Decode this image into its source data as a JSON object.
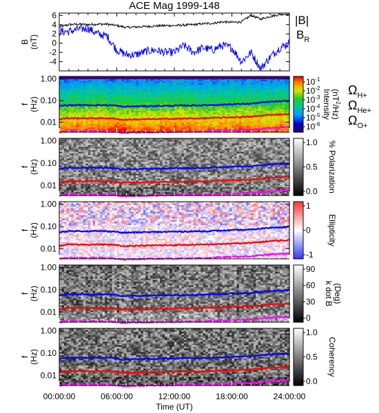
{
  "title": "ACE Mag 1999-148",
  "x_axis": {
    "ticks": [
      "00:00:00",
      "06:00:00",
      "12:00:00",
      "18:00:00",
      "24:00:00"
    ],
    "label": "Time (UT)",
    "range_hours": [
      0,
      24
    ]
  },
  "freq_ticks": [
    "1.00",
    "0.10",
    "0.01"
  ],
  "freq_ylabel": [
    "f",
    "(Hz)"
  ],
  "colors": {
    "B_total": "#000000",
    "B_R": "#0000ff",
    "H_plus": "#0000ff",
    "He_plus": "#ff0000",
    "O_plus": "#ff00ff"
  },
  "chart_data": [
    {
      "type": "line",
      "ylabel": [
        "B",
        "(nT)"
      ],
      "ylim": [
        -6,
        6.5
      ],
      "yticks": [
        "6",
        "4",
        "2",
        "0",
        "-2",
        "-4"
      ],
      "legend": [
        {
          "label": "|B|",
          "color": "#000000"
        },
        {
          "label": "B_R",
          "main": "B",
          "sub": "R",
          "color": "#0000ff"
        }
      ],
      "series": [
        {
          "name": "|B|",
          "x": [
            0,
            1,
            2,
            3,
            4,
            5,
            6,
            7,
            8,
            9,
            10,
            11,
            12,
            13,
            14,
            15,
            16,
            17,
            18,
            19,
            20,
            21,
            22,
            23,
            24
          ],
          "values": [
            3.5,
            4.0,
            4.1,
            4.0,
            4.1,
            4.1,
            3.8,
            3.4,
            3.5,
            3.6,
            3.7,
            3.8,
            3.8,
            3.9,
            4.0,
            4.2,
            4.3,
            4.6,
            4.5,
            4.6,
            6.0,
            5.2,
            5.8,
            6.2,
            6.4
          ]
        },
        {
          "name": "B_R",
          "x": [
            0,
            1,
            2,
            3,
            4,
            5,
            6,
            7,
            8,
            9,
            10,
            11,
            12,
            13,
            14,
            15,
            16,
            17,
            18,
            19,
            20,
            21,
            22,
            23,
            24
          ],
          "values": [
            2.5,
            2.5,
            3.0,
            3.2,
            2.0,
            1.5,
            -1.5,
            -2.5,
            -2.5,
            -1.8,
            -1.5,
            -2.0,
            -2.0,
            -0.5,
            -2.0,
            -1.0,
            -1.5,
            -0.5,
            -1.0,
            -4.0,
            -2.0,
            -5.5,
            -3.0,
            -1.0,
            0.0
          ]
        }
      ]
    },
    {
      "type": "heatmap",
      "name": "intensity",
      "colorbar": {
        "ticks": [
          "10^-1",
          "10^-2",
          "10^-3",
          "10^-4",
          "10^-5",
          "10^-6"
        ],
        "label": [
          "Intensity",
          "(nT^2/Hz)"
        ],
        "scale": "log",
        "range": [
          1e-06,
          0.1
        ]
      },
      "legend": [
        {
          "label": "Ω_H+",
          "main": "Ω",
          "sub": "H+",
          "color": "#0000ff"
        },
        {
          "label": "Ω_He+",
          "main": "Ω",
          "sub": "He+",
          "color": "#ff0000"
        },
        {
          "label": "Ω_O+",
          "main": "Ω",
          "sub": "O+",
          "color": "#ff00ff"
        }
      ]
    },
    {
      "type": "heatmap",
      "name": "polarization",
      "colorbar": {
        "ticks": [
          "1.0",
          "0.5",
          "0.0"
        ],
        "label": [
          "% Polarization"
        ],
        "range": [
          0,
          1
        ]
      }
    },
    {
      "type": "heatmap",
      "name": "ellipticity",
      "colorbar": {
        "ticks": [
          "1",
          "0",
          "-1"
        ],
        "label": [
          "Ellipticity"
        ],
        "range": [
          -1,
          1
        ]
      }
    },
    {
      "type": "heatmap",
      "name": "k_dot_B",
      "colorbar": {
        "ticks": [
          "90",
          "60",
          "30",
          "0"
        ],
        "label": [
          "k dot B",
          "(Deg)"
        ],
        "range": [
          0,
          90
        ]
      }
    },
    {
      "type": "heatmap",
      "name": "coherency",
      "colorbar": {
        "ticks": [
          "1.0",
          "0.5",
          "0.0"
        ],
        "label": [
          "Coherency"
        ],
        "range": [
          0,
          1
        ]
      }
    }
  ],
  "gyrofrequencies_hz": {
    "x": [
      0,
      0.5,
      1,
      2,
      3,
      4,
      5,
      5.5,
      6,
      6.5,
      7,
      8,
      9,
      10,
      11,
      12,
      13,
      14,
      15,
      16,
      17,
      18,
      19,
      20,
      21,
      22,
      23,
      24
    ],
    "H_plus": [
      0.055,
      0.06,
      0.061,
      0.062,
      0.061,
      0.062,
      0.061,
      0.06,
      0.058,
      0.052,
      0.053,
      0.054,
      0.055,
      0.056,
      0.057,
      0.058,
      0.059,
      0.06,
      0.061,
      0.063,
      0.065,
      0.068,
      0.07,
      0.072,
      0.08,
      0.088,
      0.092,
      0.096
    ],
    "He_plus": [
      0.013,
      0.015,
      0.0153,
      0.0155,
      0.0153,
      0.0155,
      0.0153,
      0.015,
      0.0145,
      0.013,
      0.0133,
      0.0135,
      0.0138,
      0.014,
      0.0143,
      0.0145,
      0.0148,
      0.015,
      0.0153,
      0.0158,
      0.0163,
      0.017,
      0.0175,
      0.018,
      0.02,
      0.022,
      0.023,
      0.024
    ],
    "O_plus": [
      0.0034,
      0.0038,
      0.0038,
      0.0039,
      0.0038,
      0.0039,
      0.0038,
      0.0037,
      0.0036,
      0.0033,
      0.0033,
      0.0034,
      0.0034,
      0.0035,
      0.0036,
      0.0036,
      0.0037,
      0.0038,
      0.0038,
      0.004,
      0.0041,
      0.0043,
      0.0044,
      0.0045,
      0.005,
      0.0055,
      0.0058,
      0.006
    ]
  }
}
